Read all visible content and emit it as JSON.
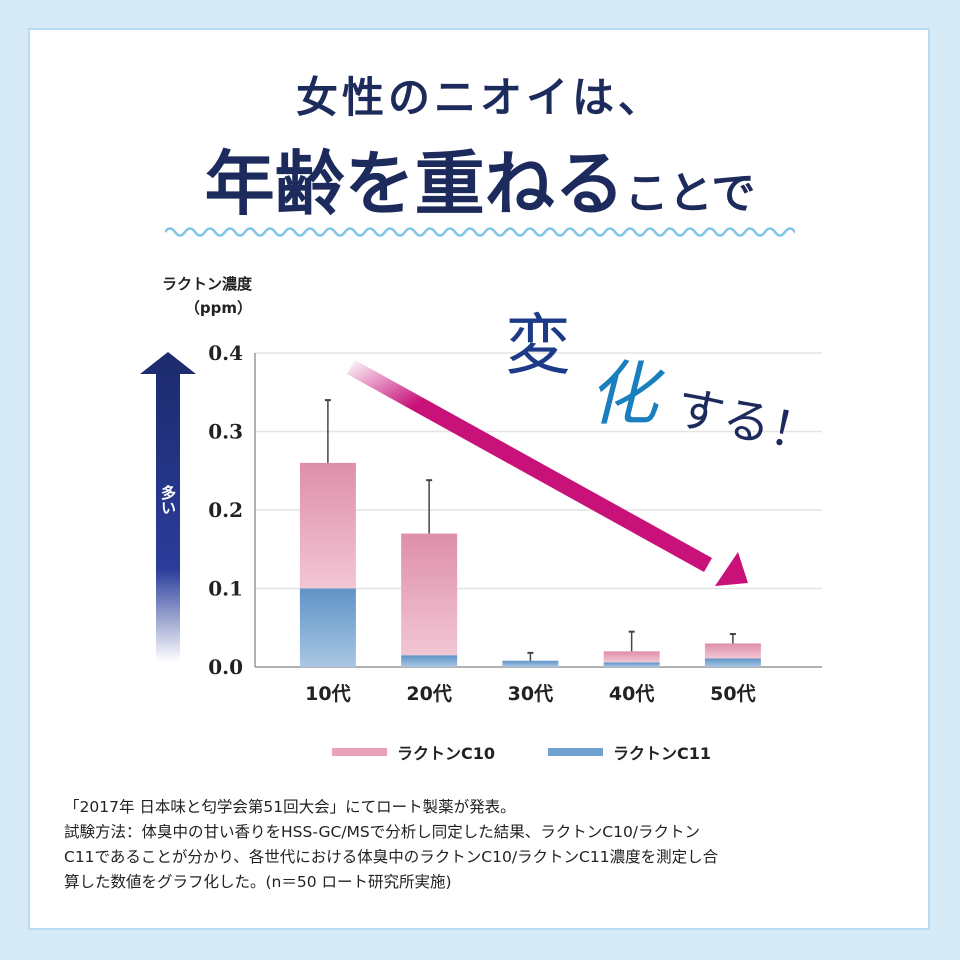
{
  "title": {
    "line1": "女性のニオイは、",
    "line2_big": "年齢を重ねる",
    "line2_small": "ことで"
  },
  "slogan": {
    "part1": "変",
    "part2": "化",
    "part3": "する！"
  },
  "more_label": "多い",
  "chart_data": {
    "type": "bar",
    "stacked": true,
    "ylabel": "ラクトン濃度\n（ppm）",
    "ylabel_line1": "ラクトン濃度",
    "ylabel_line2": "（ppm）",
    "categories": [
      "10代",
      "20代",
      "30代",
      "40代",
      "50代"
    ],
    "ylim": [
      0,
      0.4
    ],
    "yticks": [
      "0.0",
      "0.1",
      "0.2",
      "0.3",
      "0.4"
    ],
    "grid": true,
    "series": [
      {
        "name": "ラクトンC11",
        "color": "#6b9ccb",
        "values": [
          0.1,
          0.015,
          0.008,
          0.006,
          0.011
        ]
      },
      {
        "name": "ラクトンC10",
        "color": "#e395ae",
        "values": [
          0.16,
          0.155,
          0.0,
          0.014,
          0.019
        ]
      }
    ],
    "error_top": [
      0.34,
      0.238,
      0.018,
      0.045,
      0.042
    ],
    "legend_position": "bottom",
    "trend_arrow_color": "#c8127a"
  },
  "legend": [
    {
      "label": "ラクトンC10",
      "color": "#e9a2b8"
    },
    {
      "label": "ラクトンC11",
      "color": "#6fa2d2"
    }
  ],
  "notes": [
    "「2017年 日本味と匂学会第51回大会」にてロート製薬が発表。",
    "試験方法：体臭中の甘い香りをHSS-GC/MSで分析し同定した結果、ラクトンC10/ラクトン",
    "C11であることが分かり、各世代における体臭中のラクトンC10/ラクトンC11濃度を測定し合",
    "算した数値をグラフ化した。(n＝50 ロート研究所実施)"
  ]
}
